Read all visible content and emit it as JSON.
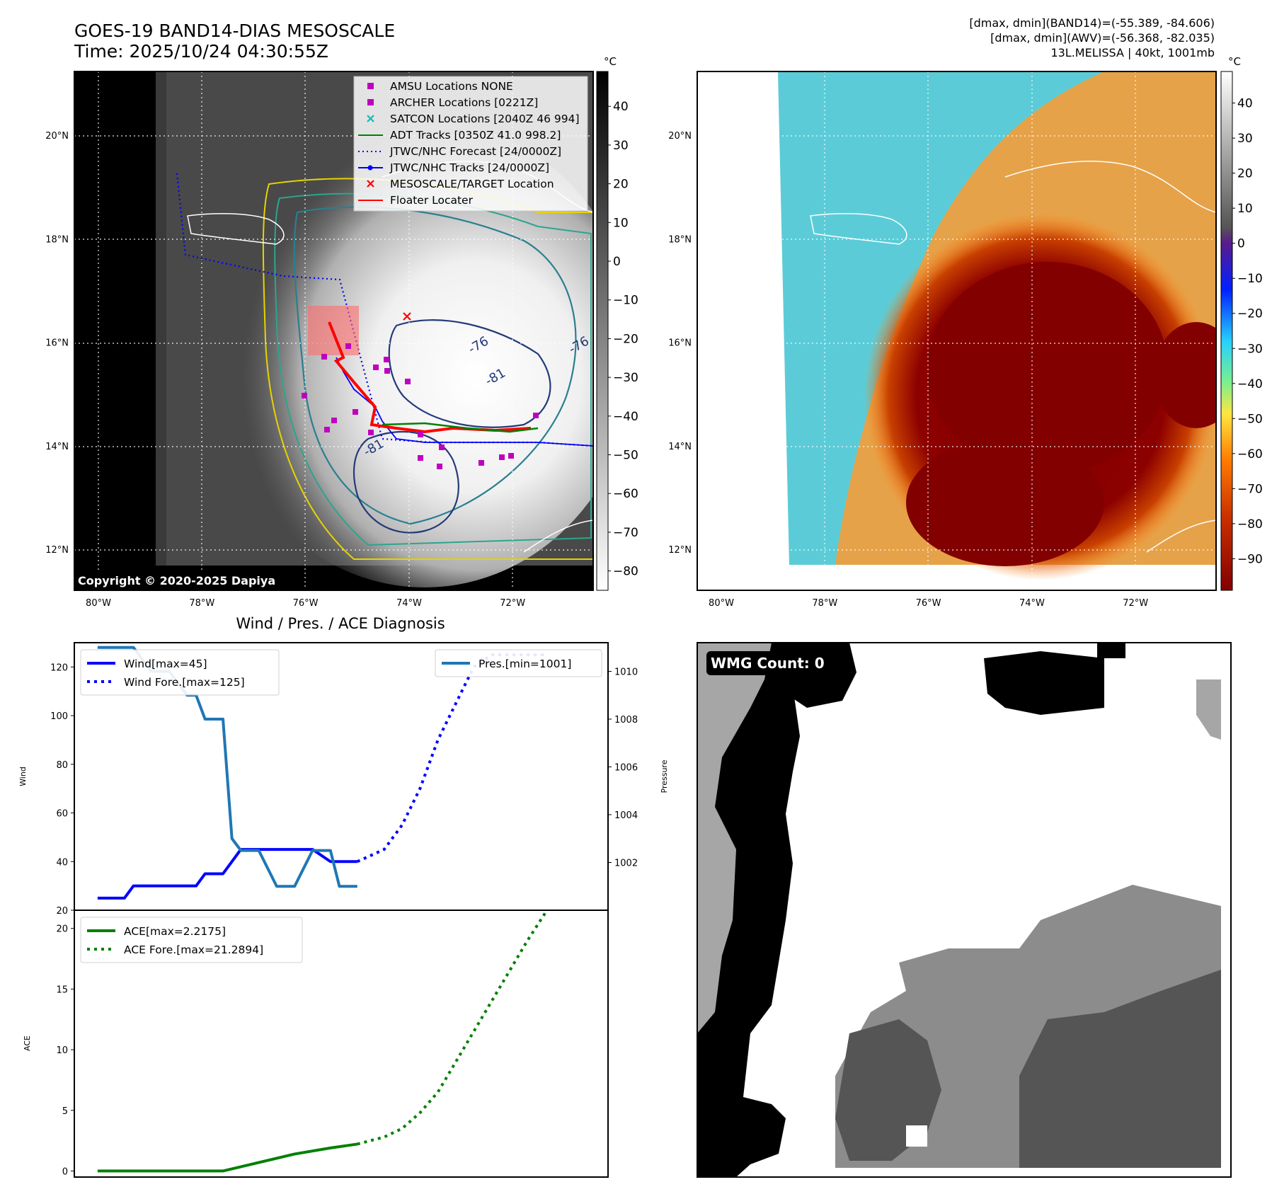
{
  "header": {
    "title": "GOES-19 BAND14-DIAS MESOSCALE",
    "time": "Time: 2025/10/24 04:30:55Z",
    "stat_line1": "[dmax, dmin](BAND14)=(-55.389, -84.606)",
    "stat_line2": "[dmax, dmin](AWV)=(-56.368, -82.035)",
    "storm_info": "13L.MELISSA | 40kt, 1001mb"
  },
  "map": {
    "lon_labels": [
      "80°W",
      "78°W",
      "76°W",
      "74°W",
      "72°W"
    ],
    "lat_labels": [
      "20°N",
      "18°N",
      "16°N",
      "14°N",
      "12°N"
    ],
    "copyright": "Copyright © 2020-2025 Dapiya",
    "contour_labels": [
      "-76",
      "-81",
      "-76",
      "-81"
    ],
    "legend": [
      {
        "label": "AMSU Locations NONE",
        "color": "#bf00bf",
        "style": "square"
      },
      {
        "label": "ARCHER Locations [0221Z]",
        "color": "#bf00bf",
        "style": "square"
      },
      {
        "label": "SATCON Locations [2040Z 46 994]",
        "color": "#00bfbf",
        "style": "x"
      },
      {
        "label": "ADT Tracks [0350Z 41.0 998.2]",
        "color": "#008000",
        "style": "line"
      },
      {
        "label": "JTWC/NHC Forecast [24/0000Z]",
        "color": "#0000ff",
        "style": "dotted"
      },
      {
        "label": "JTWC/NHC Tracks [24/0000Z]",
        "color": "#0000ff",
        "style": "line-dot"
      },
      {
        "label": "MESOSCALE/TARGET Location",
        "color": "#ff0000",
        "style": "x"
      },
      {
        "label": "Floater Locater",
        "color": "#ff0000",
        "style": "line"
      }
    ],
    "colorbar_unit": "°C"
  },
  "ir_colorbar_ticks": [
    "40",
    "30",
    "20",
    "10",
    "0",
    "−10",
    "−20",
    "−30",
    "−40",
    "−50",
    "−60",
    "−70",
    "−80"
  ],
  "wv_colorbar_ticks": [
    "40",
    "30",
    "20",
    "10",
    "0",
    "−10",
    "−20",
    "−30",
    "−40",
    "−50",
    "−60",
    "−70",
    "−80",
    "−90"
  ],
  "colors": {
    "wind": "#0000ff",
    "pressure": "#1f77b4",
    "ace": "#008000"
  },
  "wmg": {
    "label": "WMG Count: 0"
  },
  "chart_data": [
    {
      "type": "line",
      "title": "Wind / Pres. / ACE Diagnosis",
      "ylabel": "Wind",
      "y2label": "Pressure",
      "ylim": [
        20,
        130
      ],
      "y2lim": [
        1000.0,
        1011.2
      ],
      "yticks": [
        "20",
        "40",
        "60",
        "80",
        "100",
        "120"
      ],
      "y2ticks": [
        "1002",
        "1004",
        "1006",
        "1008",
        "1010"
      ],
      "x": [
        0,
        1,
        2,
        3,
        4,
        5,
        6,
        7,
        8,
        9,
        10,
        11,
        12,
        13,
        14,
        15,
        16,
        17,
        18,
        19,
        20,
        21,
        22,
        23,
        24,
        25,
        26
      ],
      "legend_left": [
        "Wind[max=45]",
        "Wind Fore.[max=125]"
      ],
      "legend_right": [
        "Pres.[min=1001]"
      ],
      "series": [
        {
          "name": "Wind[max=45]",
          "style": "solid",
          "color": "#0000ff",
          "x": [
            0,
            1.5,
            2,
            5.5,
            6,
            7,
            8,
            9,
            10,
            11,
            12,
            13,
            14,
            14.5
          ],
          "values": [
            25,
            25,
            30,
            30,
            35,
            35,
            45,
            45,
            45,
            45,
            45,
            40,
            40,
            40
          ]
        },
        {
          "name": "Wind Fore.[max=125]",
          "style": "dotted",
          "color": "#0000ff",
          "x": [
            14.5,
            16,
            17,
            18,
            19,
            20,
            21,
            22,
            23,
            24,
            25
          ],
          "values": [
            40,
            45,
            55,
            70,
            90,
            105,
            120,
            125,
            125,
            125,
            125
          ]
        },
        {
          "name": "Pres.[min=1001]",
          "style": "solid",
          "color": "#1f77b4",
          "axis": "right",
          "x": [
            0,
            2,
            3,
            4,
            5,
            5.5,
            6,
            7,
            7.5,
            8,
            9,
            10,
            11,
            12,
            13,
            13.5,
            14,
            14.5
          ],
          "values": [
            1011,
            1011,
            1010,
            1010,
            1009,
            1009,
            1008,
            1008,
            1003,
            1002.5,
            1002.5,
            1001,
            1001,
            1002.5,
            1002.5,
            1001,
            1001,
            1001
          ]
        }
      ]
    },
    {
      "type": "line",
      "ylabel": "ACE",
      "ylim": [
        -0.5,
        21.5
      ],
      "yticks": [
        "0",
        "5",
        "10",
        "15",
        "20"
      ],
      "legend": [
        "ACE[max=2.2175]",
        "ACE Fore.[max=21.2894]"
      ],
      "series": [
        {
          "name": "ACE[max=2.2175]",
          "style": "solid",
          "color": "#008000",
          "x": [
            0,
            7,
            9,
            11,
            13,
            14.5
          ],
          "values": [
            0,
            0,
            0.7,
            1.4,
            1.9,
            2.2175
          ]
        },
        {
          "name": "ACE Fore.[max=21.2894]",
          "style": "dotted",
          "color": "#008000",
          "x": [
            14.5,
            16,
            17,
            18,
            19,
            20,
            21,
            22,
            23,
            24,
            25
          ],
          "values": [
            2.2175,
            2.8,
            3.5,
            4.8,
            6.5,
            9,
            11.5,
            14,
            16.5,
            19,
            21.2894
          ]
        }
      ]
    }
  ]
}
